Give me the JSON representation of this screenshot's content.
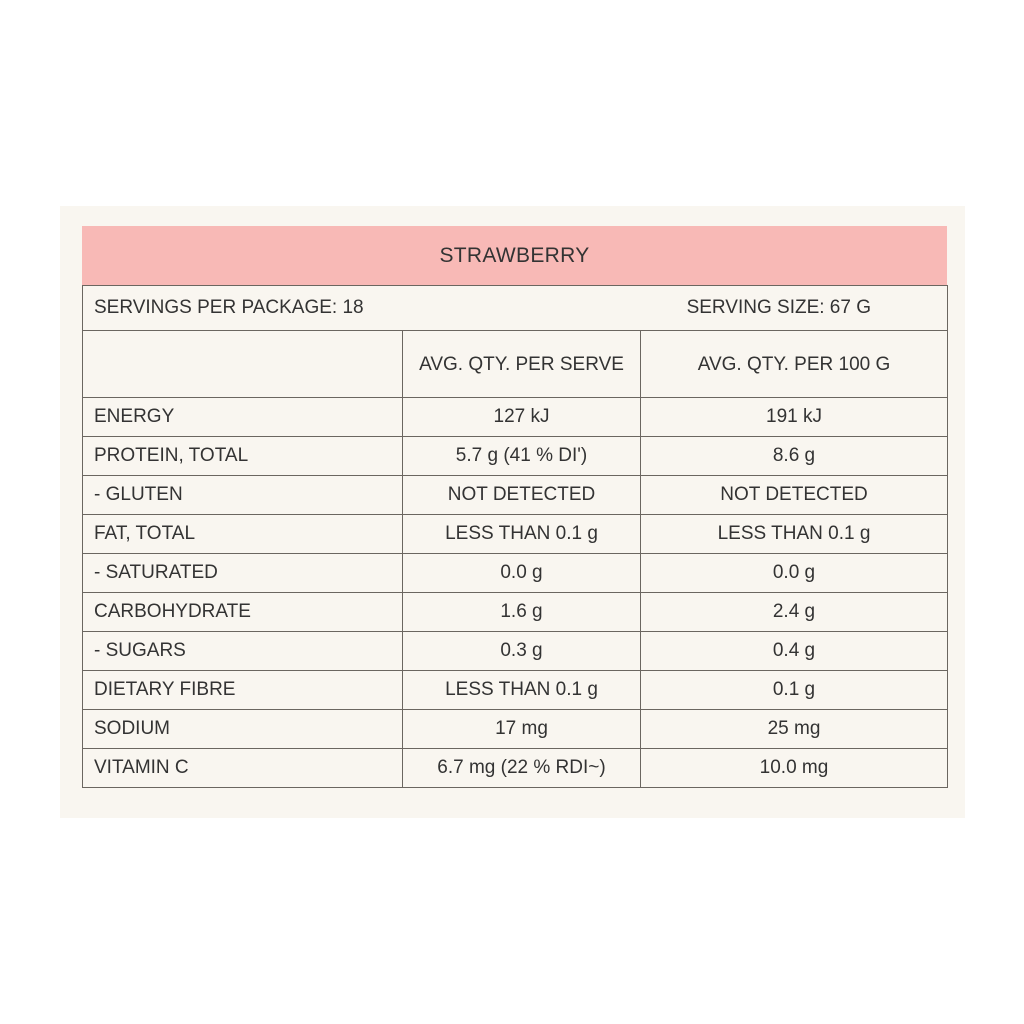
{
  "title": "STRAWBERRY",
  "servings_per_package": "SERVINGS PER PACKAGE: 18",
  "serving_size": "SERVING SIZE: 67 G",
  "columns": [
    "",
    "AVG. QTY. PER SERVE",
    "AVG. QTY. PER 100 G"
  ],
  "rows": [
    {
      "label": "ENERGY",
      "per_serve": "127 kJ",
      "per_100g": "191 kJ"
    },
    {
      "label": "PROTEIN, TOTAL",
      "per_serve": "5.7 g (41 % DI')",
      "per_100g": "8.6 g"
    },
    {
      "label": "- GLUTEN",
      "per_serve": "NOT DETECTED",
      "per_100g": "NOT DETECTED"
    },
    {
      "label": "FAT, TOTAL",
      "per_serve": "LESS THAN 0.1 g",
      "per_100g": "LESS THAN 0.1 g"
    },
    {
      "label": "- SATURATED",
      "per_serve": "0.0 g",
      "per_100g": "0.0 g"
    },
    {
      "label": "CARBOHYDRATE",
      "per_serve": "1.6 g",
      "per_100g": "2.4 g"
    },
    {
      "label": "- SUGARS",
      "per_serve": "0.3 g",
      "per_100g": "0.4 g"
    },
    {
      "label": "DIETARY FIBRE",
      "per_serve": "LESS THAN 0.1 g",
      "per_100g": "0.1 g"
    },
    {
      "label": "SODIUM",
      "per_serve": "17 mg",
      "per_100g": "25 mg"
    },
    {
      "label": "VITAMIN C",
      "per_serve": "6.7 mg (22 % RDI~)",
      "per_100g": "10.0 mg"
    }
  ],
  "colors": {
    "header": "#f8b9b6",
    "background": "#f9f6f0",
    "border": "#6b6660"
  }
}
